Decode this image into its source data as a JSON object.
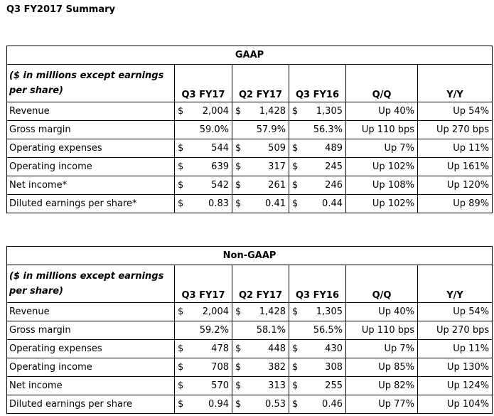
{
  "page_title": "Q3 FY2017 Summary",
  "tables": [
    {
      "title": "GAAP",
      "note": "($ in millions except earnings per share)",
      "columns": [
        "Q3 FY17",
        "Q2 FY17",
        "Q3 FY16",
        "Q/Q",
        "Y/Y"
      ],
      "rows": [
        {
          "label": "Revenue",
          "cur": [
            "$",
            "$",
            "$"
          ],
          "vals": [
            "2,004",
            "1,428",
            "1,305"
          ],
          "qq": "Up 40%",
          "yy": "Up 54%"
        },
        {
          "label": "Gross margin",
          "cur": [
            "",
            "",
            ""
          ],
          "vals": [
            "59.0%",
            "57.9%",
            "56.3%"
          ],
          "qq": "Up 110 bps",
          "yy": "Up 270 bps"
        },
        {
          "label": "Operating expenses",
          "cur": [
            "$",
            "$",
            "$"
          ],
          "vals": [
            "544",
            "509",
            "489"
          ],
          "qq": "Up 7%",
          "yy": "Up 11%"
        },
        {
          "label": "Operating income",
          "cur": [
            "$",
            "$",
            "$"
          ],
          "vals": [
            "639",
            "317",
            "245"
          ],
          "qq": "Up 102%",
          "yy": "Up 161%"
        },
        {
          "label": "Net income*",
          "cur": [
            "$",
            "$",
            "$"
          ],
          "vals": [
            "542",
            "261",
            "246"
          ],
          "qq": "Up 108%",
          "yy": "Up 120%"
        },
        {
          "label": "Diluted earnings per share*",
          "cur": [
            "$",
            "$",
            "$"
          ],
          "vals": [
            "0.83",
            "0.41",
            "0.44"
          ],
          "qq": "Up 102%",
          "yy": "Up 89%"
        }
      ]
    },
    {
      "title": "Non-GAAP",
      "note": "($ in millions except earnings per share)",
      "columns": [
        "Q3 FY17",
        "Q2 FY17",
        "Q3 FY16",
        "Q/Q",
        "Y/Y"
      ],
      "rows": [
        {
          "label": "Revenue",
          "cur": [
            "$",
            "$",
            "$"
          ],
          "vals": [
            "2,004",
            "1,428",
            "1,305"
          ],
          "qq": "Up 40%",
          "yy": "Up 54%"
        },
        {
          "label": "Gross margin",
          "cur": [
            "",
            "",
            ""
          ],
          "vals": [
            "59.2%",
            "58.1%",
            "56.5%"
          ],
          "qq": "Up 110 bps",
          "yy": "Up 270 bps"
        },
        {
          "label": "Operating expenses",
          "cur": [
            "$",
            "$",
            "$"
          ],
          "vals": [
            "478",
            "448",
            "430"
          ],
          "qq": "Up 7%",
          "yy": "Up 11%"
        },
        {
          "label": "Operating income",
          "cur": [
            "$",
            "$",
            "$"
          ],
          "vals": [
            "708",
            "382",
            "308"
          ],
          "qq": "Up 85%",
          "yy": "Up 130%"
        },
        {
          "label": "Net income",
          "cur": [
            "$",
            "$",
            "$"
          ],
          "vals": [
            "570",
            "313",
            "255"
          ],
          "qq": "Up 82%",
          "yy": "Up 124%"
        },
        {
          "label": "Diluted earnings per share",
          "cur": [
            "$",
            "$",
            "$"
          ],
          "vals": [
            "0.94",
            "0.53",
            "0.46"
          ],
          "qq": "Up 77%",
          "yy": "Up 104%"
        }
      ]
    }
  ]
}
